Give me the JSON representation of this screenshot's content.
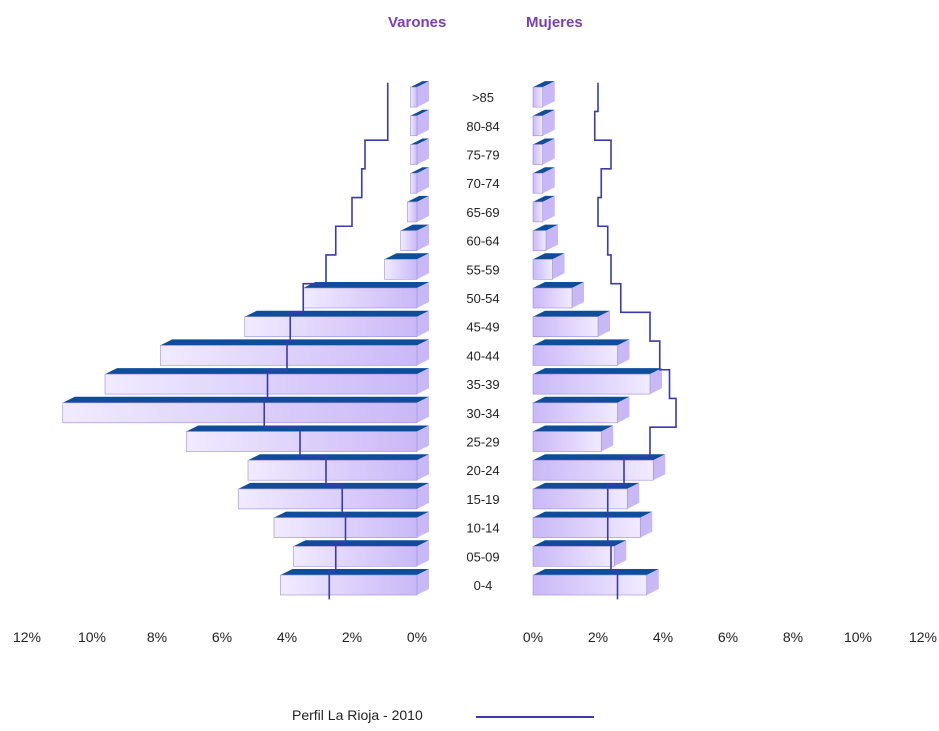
{
  "chart_data": {
    "type": "bar",
    "subtype": "population-pyramid",
    "left_header": "Varones",
    "right_header": "Mujeres",
    "categories": [
      "0-4",
      "05-09",
      "10-14",
      "15-19",
      "20-24",
      "25-29",
      "30-34",
      "35-39",
      "40-44",
      "45-49",
      "50-54",
      "55-59",
      "60-64",
      "65-69",
      "70-74",
      "75-79",
      "80-84",
      ">85"
    ],
    "series": [
      {
        "side": "left",
        "values": [
          4.2,
          3.8,
          4.4,
          5.5,
          5.2,
          7.1,
          10.9,
          9.6,
          7.9,
          5.3,
          3.5,
          1.0,
          0.5,
          0.3,
          0.2,
          0.2,
          0.2,
          0.2
        ]
      },
      {
        "side": "right",
        "values": [
          3.5,
          2.5,
          3.3,
          2.9,
          3.7,
          2.1,
          2.6,
          3.6,
          2.6,
          2.0,
          1.2,
          0.6,
          0.4,
          0.3,
          0.3,
          0.3,
          0.3,
          0.3
        ]
      }
    ],
    "reference_series": {
      "name": "Perfil La Rioja - 2010",
      "left": [
        2.7,
        2.5,
        2.2,
        2.3,
        2.8,
        3.6,
        4.7,
        4.6,
        4.0,
        3.9,
        3.5,
        2.8,
        2.5,
        2.0,
        1.7,
        1.6,
        0.9,
        0.9
      ],
      "right": [
        2.6,
        2.4,
        2.3,
        2.3,
        2.8,
        3.6,
        4.4,
        4.2,
        3.9,
        3.6,
        2.7,
        2.4,
        2.3,
        2.0,
        2.1,
        2.4,
        1.9,
        2.0
      ]
    },
    "xlim": [
      0,
      12
    ],
    "tick_values": [
      0,
      2,
      4,
      6,
      8,
      10,
      12
    ],
    "left_ticks": [
      "12%",
      "10%",
      "8%",
      "6%",
      "4%",
      "2%",
      "0%"
    ],
    "right_ticks": [
      "0%",
      "2%",
      "4%",
      "6%",
      "8%",
      "10%",
      "12%"
    ],
    "colors": {
      "bar_light": "#e6dcff",
      "bar_mid": "#c8b8f5",
      "bar_dark": "#0f4d9b",
      "reference": "#3a3ab0",
      "header": "#7a3fb0"
    },
    "grid": false,
    "legend": "bottom-center"
  }
}
